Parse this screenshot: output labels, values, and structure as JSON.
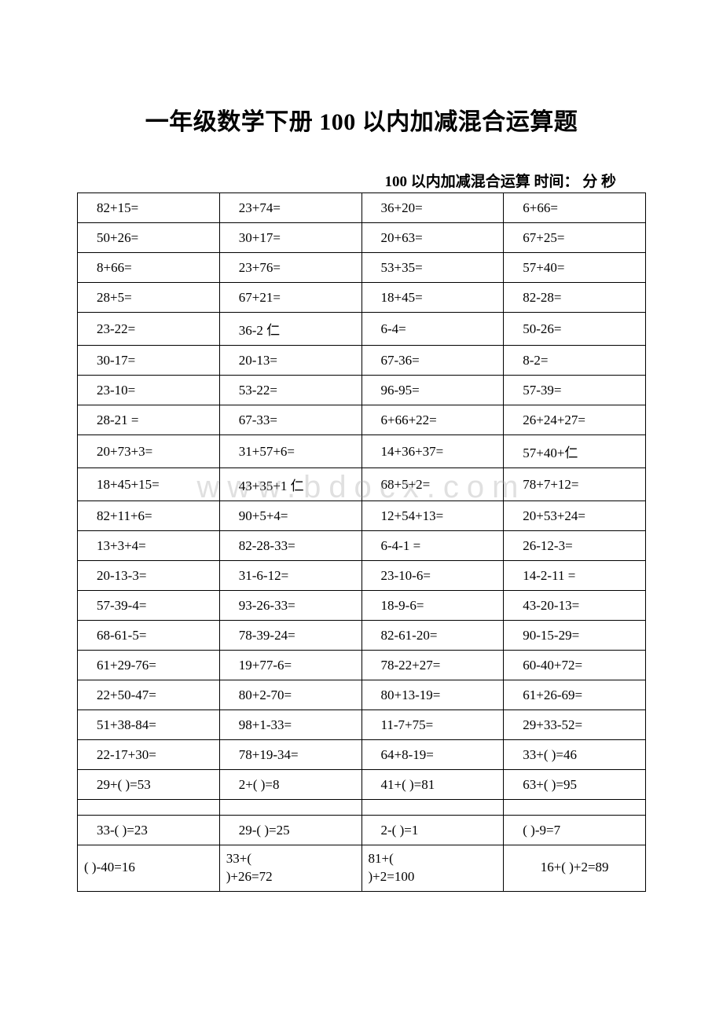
{
  "title": "一年级数学下册 100 以内加减混合运算题",
  "subtitle": "100 以内加减混合运算 时间：  分 秒",
  "watermark": "www.bdocx.com",
  "table": {
    "columns": 4,
    "border_color": "#000000",
    "font_size": 17,
    "cell_padding_left": 24,
    "rows": [
      {
        "cells": [
          "82+15=",
          "23+74=",
          "36+20=",
          "6+66="
        ]
      },
      {
        "cells": [
          "50+26=",
          "30+17=",
          "20+63=",
          "67+25="
        ]
      },
      {
        "cells": [
          "8+66=",
          "23+76=",
          "53+35=",
          "57+40="
        ]
      },
      {
        "cells": [
          "28+5=",
          "67+21=",
          "18+45=",
          "82-28="
        ]
      },
      {
        "cells": [
          "23-22=",
          "36-2 仁",
          "6-4=",
          "50-26="
        ]
      },
      {
        "cells": [
          "30-17=",
          "20-13=",
          "67-36=",
          "8-2="
        ]
      },
      {
        "cells": [
          "23-10=",
          "53-22=",
          "96-95=",
          "57-39="
        ]
      },
      {
        "cells": [
          "28-21 =",
          "67-33=",
          "6+66+22=",
          "26+24+27="
        ]
      },
      {
        "cells": [
          "20+73+3=",
          "31+57+6=",
          "14+36+37=",
          "57+40+仁"
        ]
      },
      {
        "cells": [
          "18+45+15=",
          "43+35+1 仁",
          "68+5+2=",
          "78+7+12="
        ]
      },
      {
        "cells": [
          "82+11+6=",
          "90+5+4=",
          "12+54+13=",
          "20+53+24="
        ]
      },
      {
        "cells": [
          "13+3+4=",
          "82-28-33=",
          "6-4-1 =",
          "26-12-3="
        ]
      },
      {
        "cells": [
          "20-13-3=",
          "31-6-12=",
          "23-10-6=",
          "14-2-11 ="
        ]
      },
      {
        "cells": [
          "57-39-4=",
          "93-26-33=",
          "18-9-6=",
          "43-20-13="
        ]
      },
      {
        "cells": [
          "68-61-5=",
          "78-39-24=",
          "82-61-20=",
          "90-15-29="
        ]
      },
      {
        "cells": [
          "61+29-76=",
          "19+77-6=",
          "78-22+27=",
          "60-40+72="
        ]
      },
      {
        "cells": [
          "22+50-47=",
          "80+2-70=",
          "80+13-19=",
          "61+26-69="
        ]
      },
      {
        "cells": [
          "51+38-84=",
          "98+1-33=",
          "11-7+75=",
          "29+33-52="
        ]
      },
      {
        "cells": [
          "22-17+30=",
          "78+19-34=",
          "64+8-19=",
          "33+( )=46"
        ]
      },
      {
        "cells": [
          "29+( )=53",
          "2+( )=8",
          "41+( )=81",
          "63+( )=95"
        ]
      },
      {
        "empty": true,
        "cells": [
          "",
          "",
          "",
          ""
        ]
      },
      {
        "cells": [
          "33-( )=23",
          "29-( )=25",
          "2-( )=1",
          "( )-9=7"
        ]
      },
      {
        "tall": true,
        "cells": [
          "( )-40=16",
          "33+(\n)+26=72",
          "81+(\n)+2=100",
          "16+( )+2=89"
        ]
      }
    ]
  }
}
